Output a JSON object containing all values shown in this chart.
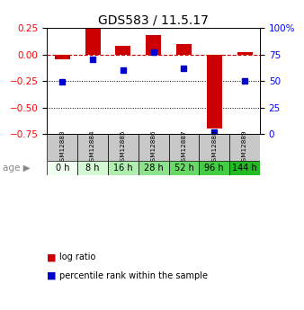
{
  "title": "GDS583 / 11.5.17",
  "samples": [
    "GSM12883",
    "GSM12884",
    "GSM12885",
    "GSM12886",
    "GSM12887",
    "GSM12888",
    "GSM12889"
  ],
  "ages": [
    "0 h",
    "8 h",
    "16 h",
    "28 h",
    "52 h",
    "96 h",
    "144 h"
  ],
  "log_ratio": [
    -0.05,
    0.255,
    0.08,
    0.18,
    0.1,
    -0.7,
    0.02
  ],
  "percentile_rank": [
    49,
    70,
    60,
    77,
    62,
    2,
    50
  ],
  "left_ylim": [
    -0.75,
    0.25
  ],
  "right_ylim": [
    0,
    100
  ],
  "left_yticks": [
    0.25,
    0,
    -0.25,
    -0.5,
    -0.75
  ],
  "right_yticks": [
    100,
    75,
    50,
    25,
    0
  ],
  "right_yticklabels": [
    "100%",
    "75",
    "50",
    "25",
    "0"
  ],
  "bar_color": "#cc0000",
  "dot_color": "#0000cc",
  "dashed_line_color": "#cc0000",
  "age_colors": [
    "#f0fff0",
    "#d4f7d4",
    "#b0eeb0",
    "#8de38d",
    "#66d966",
    "#44cc44",
    "#22bb22"
  ],
  "sample_bg_color": "#c8c8c8",
  "background_color": "#ffffff",
  "legend_labels": [
    "log ratio",
    "percentile rank within the sample"
  ]
}
